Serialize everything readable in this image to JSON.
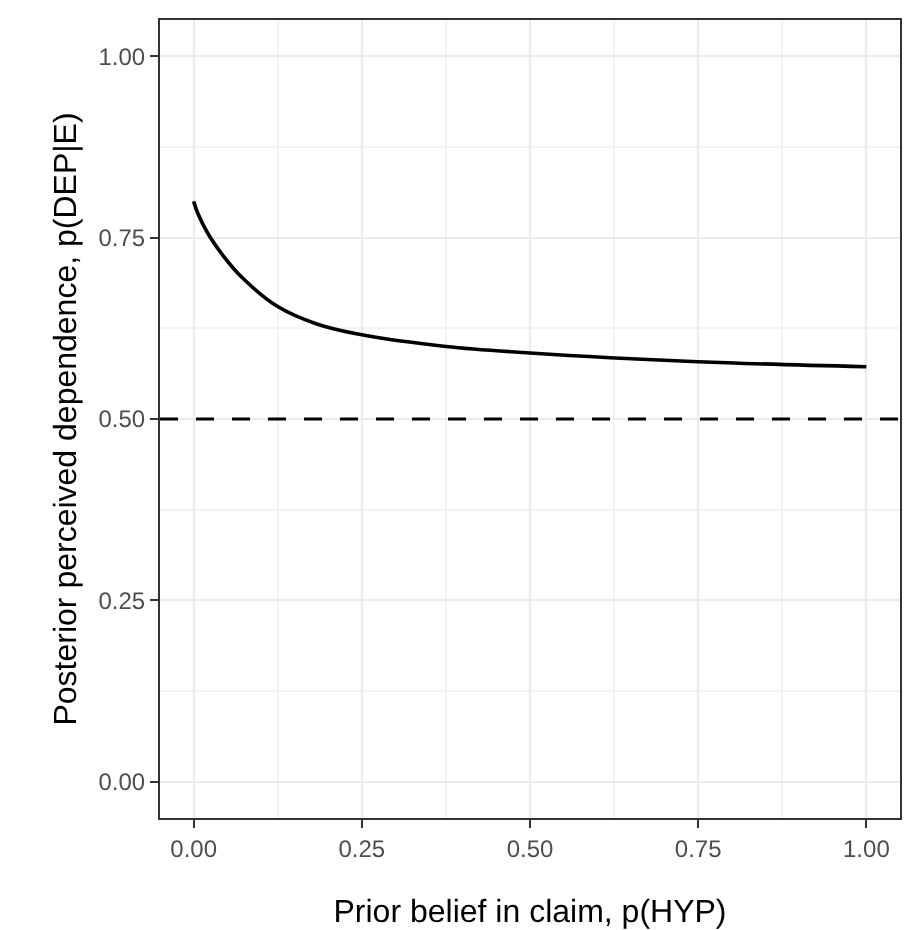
{
  "chart_data": {
    "type": "line",
    "xlabel": "Prior belief in claim, p(HYP)",
    "ylabel": "Posterior perceived dependence, p(DEP|E)",
    "x": [
      0,
      0.006,
      0.021,
      0.044,
      0.072,
      0.125,
      0.183,
      0.25,
      0.375,
      0.5,
      0.75,
      1.0
    ],
    "series": [
      {
        "color": "#000000",
        "values": [
          0.8,
          0.784,
          0.756,
          0.725,
          0.695,
          0.655,
          0.631,
          0.616,
          0.6,
          0.591,
          0.579,
          0.572
        ]
      }
    ],
    "xlim": [
      -0.05,
      1.05
    ],
    "ylim": [
      -0.05,
      1.05
    ],
    "xticks": [
      {
        "value": 0,
        "label": "0.00"
      },
      {
        "value": 0.25,
        "label": "0.25"
      },
      {
        "value": 0.5,
        "label": "0.50"
      },
      {
        "value": 0.75,
        "label": "0.75"
      },
      {
        "value": 1,
        "label": "1.00"
      }
    ],
    "yticks": [
      {
        "value": 0,
        "label": "0.00"
      },
      {
        "value": 0.25,
        "label": "0.25"
      },
      {
        "value": 0.5,
        "label": "0.50"
      },
      {
        "value": 0.75,
        "label": "0.75"
      },
      {
        "value": 1,
        "label": "1.00"
      }
    ],
    "ref_lines": [
      {
        "axis": "y",
        "value": 0.5,
        "color": "#000000",
        "line_style": "dashed"
      }
    ],
    "grid": true,
    "marker": "none",
    "line_style": "solid"
  }
}
